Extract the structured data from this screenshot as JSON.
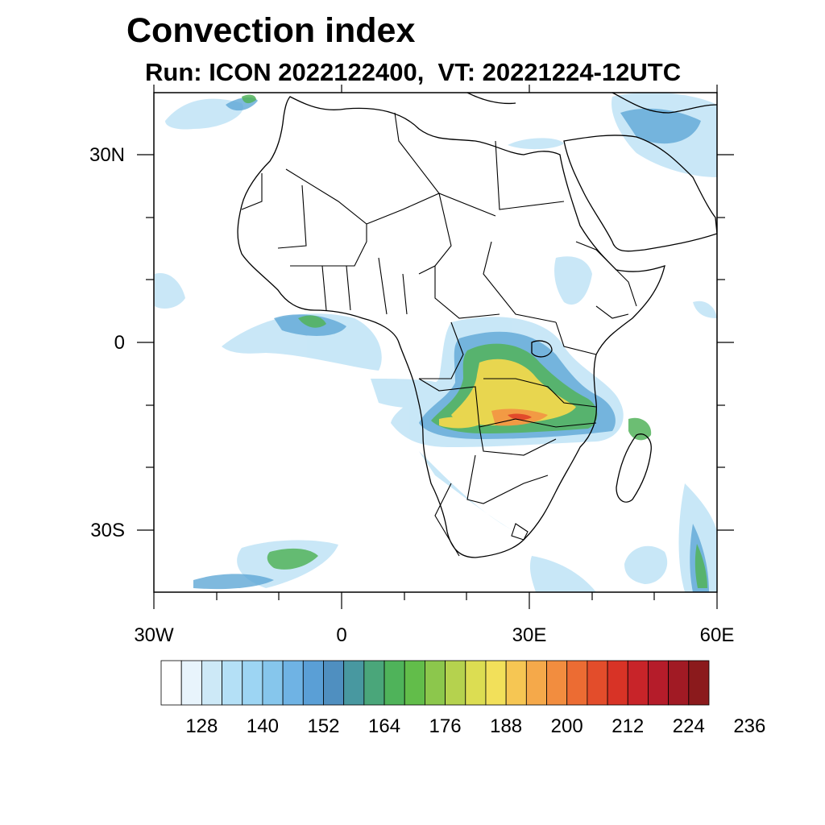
{
  "title": "Convection index",
  "subtitle": "Run: ICON 2022122400,  VT: 20221224-12UTC",
  "map": {
    "lat_labels": [
      "30N",
      "0",
      "30S"
    ],
    "lon_labels": [
      "30W",
      "0",
      "30E",
      "60E"
    ],
    "lon_range": [
      -30,
      60
    ],
    "lat_range": [
      -40,
      40
    ]
  },
  "colorbar": {
    "labels": [
      "128",
      "140",
      "152",
      "164",
      "176",
      "188",
      "200",
      "212",
      "224",
      "236"
    ],
    "colors": [
      "#ffffff",
      "#e8f4fc",
      "#cde9f7",
      "#b4e0f6",
      "#9dd5f3",
      "#86c6ec",
      "#6fb3e4",
      "#5a9fd6",
      "#4f8fc0",
      "#4898a0",
      "#4aa67a",
      "#4fb35a",
      "#62bd4a",
      "#8cc74c",
      "#b5d24e",
      "#dcdd52",
      "#f2e05a",
      "#f6c653",
      "#f5a94a",
      "#f28d3f",
      "#ec6c33",
      "#e34d2b",
      "#d83326",
      "#c82429",
      "#b51c2a",
      "#a11a24",
      "#8b1a1c"
    ]
  }
}
